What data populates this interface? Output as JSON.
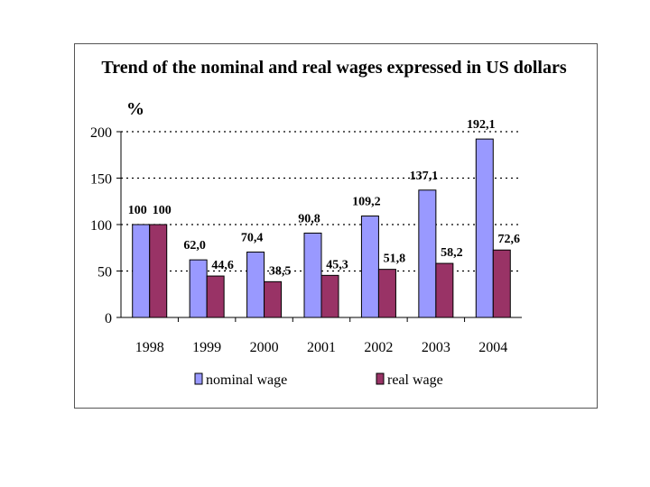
{
  "chart_data": {
    "type": "bar",
    "title": "Trend of the nominal and real wages expressed in US dollars",
    "ylabel": "%",
    "xlabel": "",
    "ylim": [
      0,
      200
    ],
    "yticks": [
      0,
      50,
      100,
      150,
      200
    ],
    "grid": true,
    "legend_position": "bottom",
    "categories": [
      "1998",
      "1999",
      "2000",
      "2001",
      "2002",
      "2003",
      "2004"
    ],
    "series": [
      {
        "name": "nominal wage",
        "color": "#9999ff",
        "values": [
          100,
          62.0,
          70.4,
          90.8,
          109.2,
          137.1,
          192.1
        ],
        "labels": [
          "100",
          "62,0",
          "70,4",
          "90,8",
          "109,2",
          "137,1",
          "192,1"
        ]
      },
      {
        "name": "real wage",
        "color": "#993366",
        "values": [
          100,
          44.6,
          38.5,
          45.3,
          51.8,
          58.2,
          72.6
        ],
        "labels": [
          "100",
          "44,6",
          "38,5",
          "45,3",
          "51,8",
          "58,2",
          "72,6"
        ]
      }
    ]
  }
}
